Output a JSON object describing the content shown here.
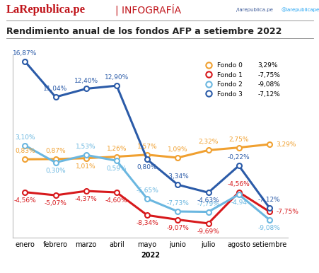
{
  "header": {
    "brand": "LaRepublica.pe",
    "section": "| INFOGRAFÍA",
    "facebook": "/larepublica.pe",
    "twitter": "@larepublicape"
  },
  "chart_data": {
    "type": "line",
    "title": "Rendimiento anual de los fondos AFP a setiembre 2022",
    "x_label": "2022",
    "categories": [
      "enero",
      "febrero",
      "marzo",
      "abril",
      "mayo",
      "junio",
      "julio",
      "agosto",
      "setiembre"
    ],
    "ylim": [
      -12,
      18
    ],
    "yticks": [],
    "tick_labels": "x",
    "grid": false,
    "legend": "upper right",
    "data_labels": true,
    "marker": "o",
    "series": [
      {
        "name": "Fondo 0",
        "color": "#f0a030",
        "legend_value": "3,29%",
        "values": [
          0.83,
          0.87,
          1.01,
          1.26,
          1.57,
          1.09,
          2.32,
          2.75,
          3.29
        ],
        "value_labels": [
          "0,83%",
          "0,87%",
          "1,01%",
          "1,26%",
          "1,57%",
          "1,09%",
          "2,32%",
          "2,75%",
          "3,29%"
        ]
      },
      {
        "name": "Fondo 1",
        "color": "#d7191c",
        "legend_value": "-7,75%",
        "values": [
          -4.56,
          -5.07,
          -4.37,
          -4.6,
          -8.34,
          -9.07,
          -9.69,
          -4.56,
          -7.75
        ],
        "value_labels": [
          "-4,56%",
          "-5,07%",
          "-4,37%",
          "-4,60%",
          "-8,34%",
          "-9,07%",
          "-9,69%",
          "-4,56%",
          "-7,75%"
        ]
      },
      {
        "name": "Fondo 2",
        "color": "#6bb7e0",
        "legend_value": "-9,08%",
        "values": [
          3.1,
          0.3,
          1.53,
          0.59,
          -5.65,
          -7.73,
          -7.79,
          -4.94,
          -9.08
        ],
        "value_labels": [
          "3,10%",
          "0,30%",
          "1,53%",
          "0,59%",
          "-5,65%",
          "-7,73%",
          "-7,79%",
          "-4,94",
          "-9,08%"
        ]
      },
      {
        "name": "Fondo 3",
        "color": "#2b5ba8",
        "legend_value": "-7,12%",
        "values": [
          16.87,
          11.04,
          12.4,
          12.9,
          0.8,
          -3.34,
          -4.63,
          -0.22,
          -7.12
        ],
        "value_labels": [
          "16,87%",
          "11,04%",
          "12,40%",
          "12,90%",
          "0,80%",
          "-3,34%",
          "-4,63%",
          "-0,22%",
          "-7,12%"
        ]
      }
    ]
  }
}
